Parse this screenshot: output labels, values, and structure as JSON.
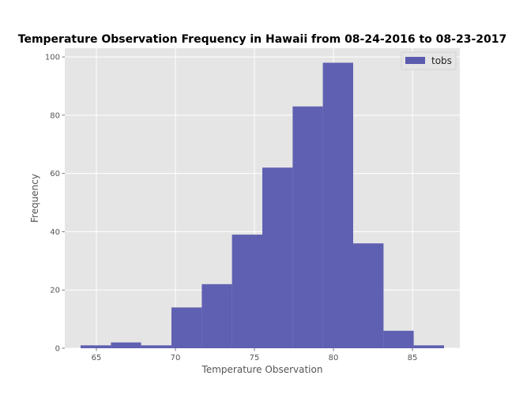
{
  "chart_data": {
    "type": "bar",
    "title": "Temperature Observation Frequency in Hawaii from 08-24-2016 to 08-23-2017",
    "xlabel": "Temperature Observation",
    "ylabel": "Frequency",
    "bin_edges": [
      64.0,
      65.92,
      67.83,
      69.75,
      71.67,
      73.58,
      75.5,
      77.42,
      79.33,
      81.25,
      83.17,
      85.08,
      87.0
    ],
    "values": [
      1,
      2,
      1,
      14,
      22,
      39,
      62,
      83,
      98,
      36,
      6,
      1
    ],
    "series": [
      {
        "name": "tobs",
        "values": [
          1,
          2,
          1,
          14,
          22,
          39,
          62,
          83,
          98,
          36,
          6,
          1
        ]
      }
    ],
    "xlim": [
      63.0,
      88.0
    ],
    "ylim": [
      0,
      103
    ],
    "xticks": [
      65,
      70,
      75,
      80,
      85
    ],
    "yticks": [
      0,
      20,
      40,
      60,
      80,
      100
    ],
    "grid": true,
    "legend_position": "top-right",
    "colors": {
      "bar": "#5b5baf",
      "bar_edge": "#5b5baf",
      "plot_bg": "#e5e5e5",
      "grid": "#ffffff"
    }
  }
}
